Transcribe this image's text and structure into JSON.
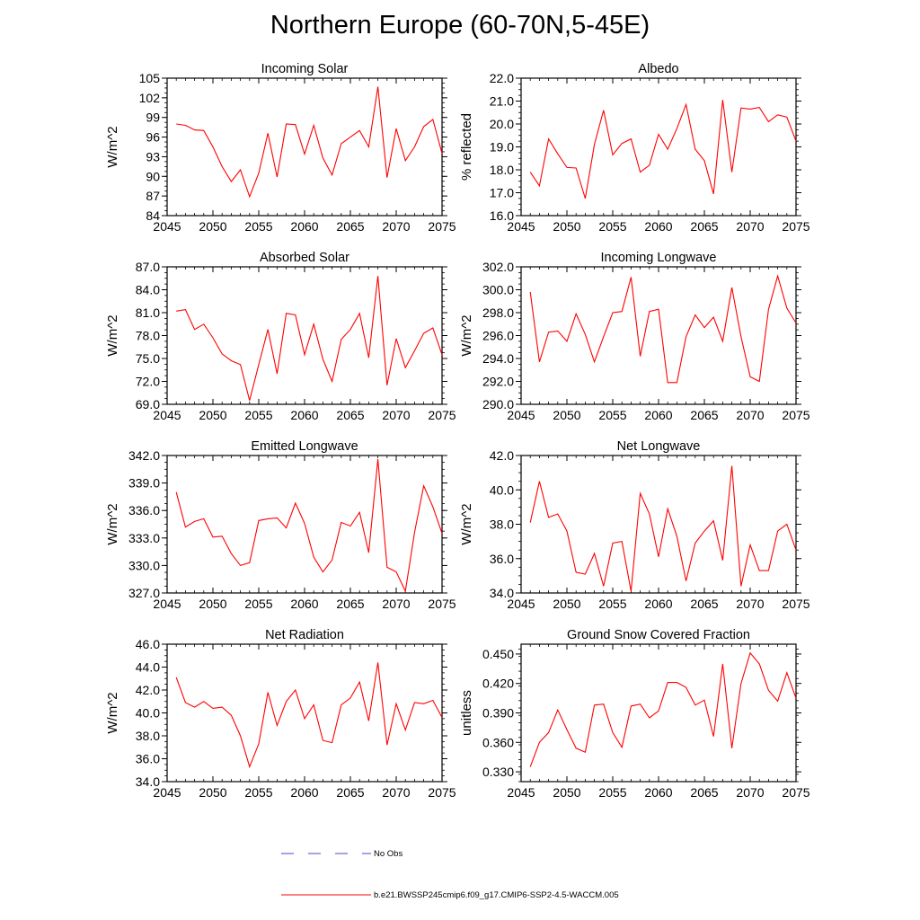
{
  "figure": {
    "title": "Northern Europe (60-70N,5-45E)",
    "line_color": "#ff0000",
    "obs_color": "#4a4ac8",
    "legend": {
      "obs_label": "No Obs",
      "model_label": "b.e21.BWSSP245cmip6.f09_g17.CMIP6-SSP2-4.5-WACCM.005"
    }
  },
  "chart_data": [
    {
      "type": "line",
      "title": "Incoming Solar",
      "ylabel": "W/m^2",
      "xlim": [
        2045,
        2075
      ],
      "ylim": [
        84,
        105
      ],
      "xticks": [
        2045,
        2050,
        2055,
        2060,
        2065,
        2070,
        2075
      ],
      "yticks": [
        84,
        87,
        90,
        93,
        96,
        99,
        102,
        105
      ],
      "ytick_labels": [
        "84",
        "87",
        "90",
        "93",
        "96",
        "99",
        "102",
        "105"
      ],
      "x": [
        2046,
        2047,
        2048,
        2049,
        2050,
        2051,
        2052,
        2053,
        2054,
        2055,
        2056,
        2057,
        2058,
        2059,
        2060,
        2061,
        2062,
        2063,
        2064,
        2065,
        2066,
        2067,
        2068,
        2069,
        2070,
        2071,
        2072,
        2073,
        2074,
        2075
      ],
      "values": [
        98.0,
        97.8,
        97.1,
        97.0,
        94.5,
        91.5,
        89.2,
        91.0,
        86.9,
        90.5,
        96.6,
        89.9,
        98.0,
        97.9,
        93.4,
        97.8,
        92.8,
        90.2,
        95.0,
        96.0,
        97.0,
        94.5,
        103.7,
        89.8,
        97.3,
        92.4,
        94.5,
        97.6,
        98.7,
        93.5
      ]
    },
    {
      "type": "line",
      "title": "Albedo",
      "ylabel": "% reflected",
      "xlim": [
        2045,
        2075
      ],
      "ylim": [
        16.0,
        22.0
      ],
      "xticks": [
        2045,
        2050,
        2055,
        2060,
        2065,
        2070,
        2075
      ],
      "yticks": [
        16,
        17,
        18,
        19,
        20,
        21,
        22
      ],
      "ytick_labels": [
        "16.0",
        "17.0",
        "18.0",
        "19.0",
        "20.0",
        "21.0",
        "22.0"
      ],
      "x": [
        2046,
        2047,
        2048,
        2049,
        2050,
        2051,
        2052,
        2053,
        2054,
        2055,
        2056,
        2057,
        2058,
        2059,
        2060,
        2061,
        2062,
        2063,
        2064,
        2065,
        2066,
        2067,
        2068,
        2069,
        2070,
        2071,
        2072,
        2073,
        2074,
        2075
      ],
      "values": [
        17.9,
        17.3,
        19.35,
        18.7,
        18.1,
        18.08,
        16.75,
        19.1,
        20.6,
        18.65,
        19.15,
        19.35,
        17.9,
        18.2,
        19.55,
        18.9,
        19.8,
        20.85,
        18.9,
        18.4,
        16.95,
        21.05,
        17.9,
        20.7,
        20.65,
        20.72,
        20.1,
        20.4,
        20.3,
        19.25
      ]
    },
    {
      "type": "line",
      "title": "Absorbed Solar",
      "ylabel": "W/m^2",
      "xlim": [
        2045,
        2075
      ],
      "ylim": [
        69.0,
        87.0
      ],
      "xticks": [
        2045,
        2050,
        2055,
        2060,
        2065,
        2070,
        2075
      ],
      "yticks": [
        69,
        72,
        75,
        78,
        81,
        84,
        87
      ],
      "ytick_labels": [
        "69.0",
        "72.0",
        "75.0",
        "78.0",
        "81.0",
        "84.0",
        "87.0"
      ],
      "x": [
        2046,
        2047,
        2048,
        2049,
        2050,
        2051,
        2052,
        2053,
        2054,
        2055,
        2056,
        2057,
        2058,
        2059,
        2060,
        2061,
        2062,
        2063,
        2064,
        2065,
        2066,
        2067,
        2068,
        2069,
        2070,
        2071,
        2072,
        2073,
        2074,
        2075
      ],
      "values": [
        81.2,
        81.4,
        78.8,
        79.5,
        77.7,
        75.6,
        74.7,
        74.2,
        69.5,
        74.2,
        78.8,
        73.0,
        80.9,
        80.7,
        75.5,
        79.5,
        74.9,
        72.0,
        77.5,
        78.8,
        80.9,
        75.1,
        85.8,
        71.5,
        77.6,
        73.8,
        76.0,
        78.3,
        79.0,
        75.5
      ]
    },
    {
      "type": "line",
      "title": "Incoming Longwave",
      "ylabel": "W/m^2",
      "xlim": [
        2045,
        2075
      ],
      "ylim": [
        290.0,
        302.0
      ],
      "xticks": [
        2045,
        2050,
        2055,
        2060,
        2065,
        2070,
        2075
      ],
      "yticks": [
        290,
        292,
        294,
        296,
        298,
        300,
        302
      ],
      "ytick_labels": [
        "290.0",
        "292.0",
        "294.0",
        "296.0",
        "298.0",
        "300.0",
        "302.0"
      ],
      "x": [
        2046,
        2047,
        2048,
        2049,
        2050,
        2051,
        2052,
        2053,
        2054,
        2055,
        2056,
        2057,
        2058,
        2059,
        2060,
        2061,
        2062,
        2063,
        2064,
        2065,
        2066,
        2067,
        2068,
        2069,
        2070,
        2071,
        2072,
        2073,
        2074,
        2075
      ],
      "values": [
        299.8,
        293.7,
        296.3,
        296.4,
        295.5,
        297.9,
        296.1,
        293.7,
        295.9,
        298.0,
        298.1,
        301.1,
        294.2,
        298.1,
        298.3,
        291.9,
        291.9,
        295.9,
        297.8,
        296.7,
        297.6,
        295.5,
        300.2,
        295.9,
        292.4,
        292.0,
        298.3,
        301.2,
        298.4,
        297.1
      ]
    },
    {
      "type": "line",
      "title": "Emitted Longwave",
      "ylabel": "W/m^2",
      "xlim": [
        2045,
        2075
      ],
      "ylim": [
        327.0,
        342.0
      ],
      "xticks": [
        2045,
        2050,
        2055,
        2060,
        2065,
        2070,
        2075
      ],
      "yticks": [
        327,
        330,
        333,
        336,
        339,
        342
      ],
      "ytick_labels": [
        "327.0",
        "330.0",
        "333.0",
        "336.0",
        "339.0",
        "342.0"
      ],
      "x": [
        2046,
        2047,
        2048,
        2049,
        2050,
        2051,
        2052,
        2053,
        2054,
        2055,
        2056,
        2057,
        2058,
        2059,
        2060,
        2061,
        2062,
        2063,
        2064,
        2065,
        2066,
        2067,
        2068,
        2069,
        2070,
        2071,
        2072,
        2073,
        2074,
        2075
      ],
      "values": [
        338.0,
        334.2,
        334.8,
        335.1,
        333.1,
        333.2,
        331.3,
        330.0,
        330.3,
        334.9,
        335.1,
        335.2,
        334.1,
        336.8,
        334.6,
        330.9,
        329.3,
        330.6,
        334.7,
        334.3,
        335.8,
        331.4,
        341.6,
        329.8,
        329.3,
        327.2,
        333.6,
        338.7,
        336.4,
        333.5
      ]
    },
    {
      "type": "line",
      "title": "Net Longwave",
      "ylabel": "W/m^2",
      "xlim": [
        2045,
        2075
      ],
      "ylim": [
        34.0,
        42.0
      ],
      "xticks": [
        2045,
        2050,
        2055,
        2060,
        2065,
        2070,
        2075
      ],
      "yticks": [
        34,
        36,
        38,
        40,
        42
      ],
      "ytick_labels": [
        "34.0",
        "36.0",
        "38.0",
        "40.0",
        "42.0"
      ],
      "x": [
        2046,
        2047,
        2048,
        2049,
        2050,
        2051,
        2052,
        2053,
        2054,
        2055,
        2056,
        2057,
        2058,
        2059,
        2060,
        2061,
        2062,
        2063,
        2064,
        2065,
        2066,
        2067,
        2068,
        2069,
        2070,
        2071,
        2072,
        2073,
        2074,
        2075
      ],
      "values": [
        38.1,
        40.5,
        38.4,
        38.6,
        37.6,
        35.2,
        35.1,
        36.3,
        34.4,
        36.9,
        37.0,
        34.1,
        39.8,
        38.6,
        36.1,
        38.9,
        37.3,
        34.7,
        36.9,
        37.6,
        38.2,
        35.9,
        41.4,
        34.4,
        36.8,
        35.3,
        35.3,
        37.6,
        38.0,
        36.5
      ]
    },
    {
      "type": "line",
      "title": "Net Radiation",
      "ylabel": "W/m^2",
      "xlim": [
        2045,
        2075
      ],
      "ylim": [
        34.0,
        46.0
      ],
      "xticks": [
        2045,
        2050,
        2055,
        2060,
        2065,
        2070,
        2075
      ],
      "yticks": [
        34,
        36,
        38,
        40,
        42,
        44,
        46
      ],
      "ytick_labels": [
        "34.0",
        "36.0",
        "38.0",
        "40.0",
        "42.0",
        "44.0",
        "46.0"
      ],
      "x": [
        2046,
        2047,
        2048,
        2049,
        2050,
        2051,
        2052,
        2053,
        2054,
        2055,
        2056,
        2057,
        2058,
        2059,
        2060,
        2061,
        2062,
        2063,
        2064,
        2065,
        2066,
        2067,
        2068,
        2069,
        2070,
        2071,
        2072,
        2073,
        2074,
        2075
      ],
      "values": [
        43.1,
        40.9,
        40.5,
        41.0,
        40.4,
        40.5,
        39.8,
        38.0,
        35.3,
        37.3,
        41.8,
        38.9,
        41.0,
        42.0,
        39.5,
        40.7,
        37.6,
        37.4,
        40.7,
        41.3,
        42.7,
        39.3,
        44.4,
        37.2,
        40.8,
        38.5,
        40.9,
        40.8,
        41.1,
        39.6
      ]
    },
    {
      "type": "line",
      "title": "Ground Snow Covered Fraction",
      "ylabel": "unitless",
      "xlim": [
        2045,
        2075
      ],
      "ylim": [
        0.32,
        0.46
      ],
      "xticks": [
        2045,
        2050,
        2055,
        2060,
        2065,
        2070,
        2075
      ],
      "yticks": [
        0.33,
        0.36,
        0.39,
        0.42,
        0.45
      ],
      "ytick_labels": [
        "0.330",
        "0.360",
        "0.390",
        "0.420",
        "0.450"
      ],
      "x": [
        2046,
        2047,
        2048,
        2049,
        2050,
        2051,
        2052,
        2053,
        2054,
        2055,
        2056,
        2057,
        2058,
        2059,
        2060,
        2061,
        2062,
        2063,
        2064,
        2065,
        2066,
        2067,
        2068,
        2069,
        2070,
        2071,
        2072,
        2073,
        2074,
        2075
      ],
      "values": [
        0.335,
        0.36,
        0.37,
        0.393,
        0.373,
        0.354,
        0.35,
        0.398,
        0.399,
        0.37,
        0.355,
        0.397,
        0.399,
        0.385,
        0.392,
        0.421,
        0.421,
        0.416,
        0.398,
        0.403,
        0.366,
        0.44,
        0.354,
        0.42,
        0.451,
        0.44,
        0.413,
        0.402,
        0.431,
        0.405
      ]
    }
  ]
}
